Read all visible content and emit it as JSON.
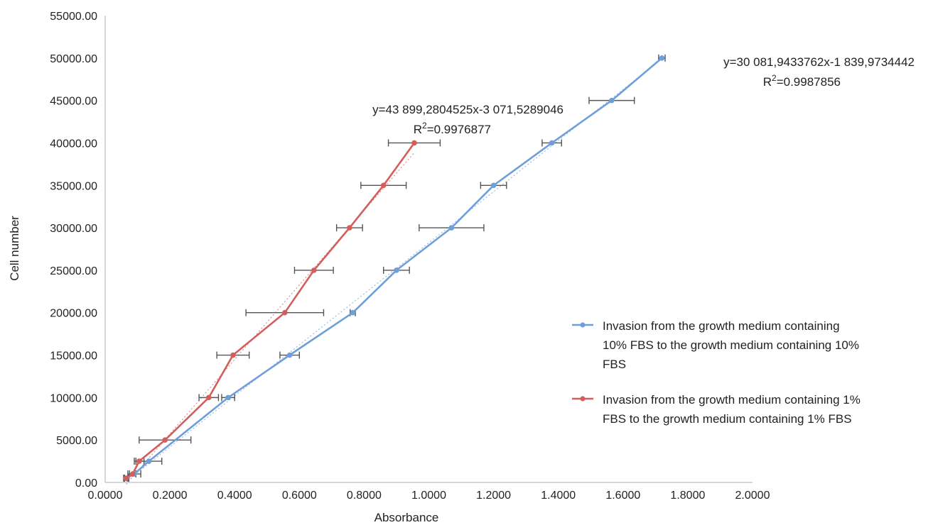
{
  "chart_data": {
    "type": "line",
    "title": "",
    "xlabel": "Absorbance",
    "ylabel": "Cell number",
    "xlim": [
      0,
      2
    ],
    "ylim": [
      0,
      55000
    ],
    "x_ticks": [
      "0.0000",
      "0.2000",
      "0.4000",
      "0.6000",
      "0.8000",
      "1.0000",
      "1.2000",
      "1.4000",
      "1.6000",
      "1.8000",
      "2.0000"
    ],
    "y_ticks": [
      "0.00",
      "5000.00",
      "10000.00",
      "15000.00",
      "20000.00",
      "25000.00",
      "30000.00",
      "35000.00",
      "40000.00",
      "45000.00",
      "50000.00",
      "55000.00"
    ],
    "grid": false,
    "legend_position": "right",
    "series": [
      {
        "name": "Invasion from the growth medium containing 10% FBS to the growth medium containing 10% FBS",
        "name_lines": [
          "Invasion from the growth medium containing",
          "10% FBS to the growth medium containing 10%",
          "FBS"
        ],
        "color": "#6f9fd8",
        "x": [
          0.065,
          0.09,
          0.135,
          0.38,
          0.57,
          0.765,
          0.9,
          1.07,
          1.2,
          1.38,
          1.565,
          1.72
        ],
        "y": [
          500,
          1000,
          2500,
          10000,
          15000,
          20000,
          25000,
          30000,
          35000,
          40000,
          45000,
          50000
        ],
        "xerr": [
          0.008,
          0.02,
          0.04,
          0.02,
          0.03,
          0.008,
          0.04,
          0.1,
          0.04,
          0.03,
          0.07,
          0.01
        ],
        "trendline": {
          "equation": "y=30 081,9433762x-1 839,9734442",
          "r2_prefix": "R",
          "r2_sup": "2",
          "r2_value": "=0.9987856",
          "slope": 30081.94,
          "intercept": -1839.97
        }
      },
      {
        "name": "Invasion from the growth medium containing 1% FBS to the growth medium containing 1% FBS",
        "name_lines": [
          "Invasion from the growth medium containing 1%",
          "FBS to the growth medium containing 1% FBS"
        ],
        "color": "#d25f5c",
        "x": [
          0.065,
          0.085,
          0.105,
          0.185,
          0.32,
          0.395,
          0.555,
          0.645,
          0.755,
          0.86,
          0.955
        ],
        "y": [
          500,
          1000,
          2500,
          5000,
          10000,
          15000,
          20000,
          25000,
          30000,
          35000,
          40000
        ],
        "xerr": [
          0.005,
          0.01,
          0.015,
          0.08,
          0.03,
          0.05,
          0.12,
          0.06,
          0.04,
          0.07,
          0.08
        ],
        "trendline": {
          "equation": "y=43 899,2804525x-3 071,5289046",
          "r2_prefix": "R",
          "r2_sup": "2",
          "r2_value": "=0.9976877",
          "slope": 43899.28,
          "intercept": -3071.53
        }
      }
    ]
  }
}
